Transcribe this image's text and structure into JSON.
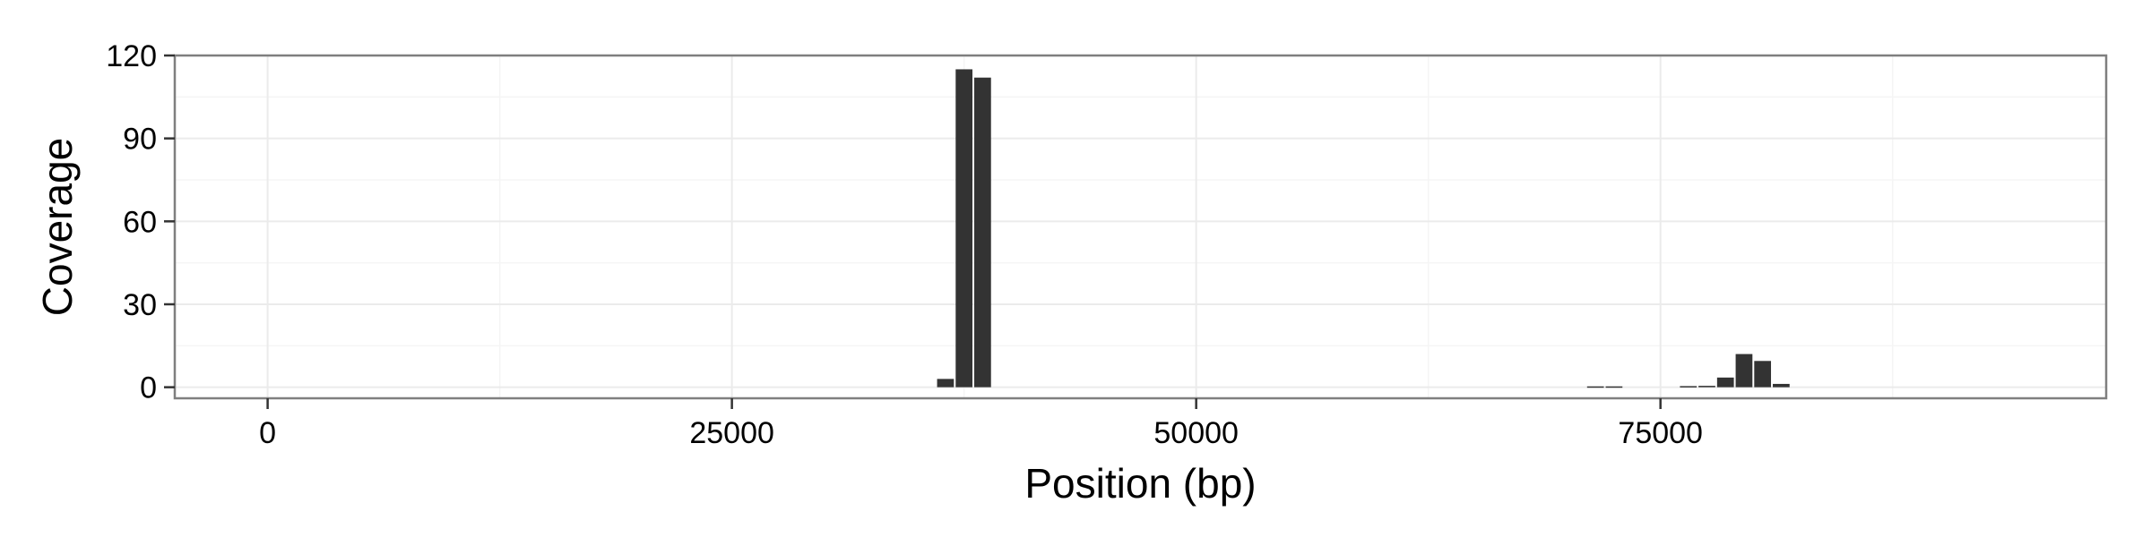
{
  "chart_data": {
    "type": "bar",
    "xlabel": "Position (bp)",
    "ylabel": "Coverage",
    "xlim": [
      -5000,
      99000
    ],
    "ylim": [
      -4,
      120
    ],
    "x_ticks": [
      0,
      25000,
      50000,
      75000
    ],
    "x_tick_labels": [
      "0",
      "25000",
      "50000",
      "75000"
    ],
    "y_ticks": [
      0,
      30,
      60,
      90,
      120
    ],
    "y_tick_labels": [
      "0",
      "30",
      "60",
      "90",
      "120"
    ],
    "grid": true,
    "bin_width": 1000,
    "colors": {
      "bar": "#333333",
      "panel_border": "#7f7f7f",
      "grid_major": "#ebebeb",
      "grid_minor": "#f5f5f5"
    },
    "series": [
      {
        "x": [
          36500,
          37500,
          38500,
          71500,
          72500,
          76500,
          77500,
          78500,
          79500,
          80500,
          81500
        ],
        "values": [
          3,
          115,
          112,
          0.3,
          0.3,
          0.4,
          0.5,
          3.5,
          12,
          9.5,
          1.2
        ]
      }
    ]
  }
}
